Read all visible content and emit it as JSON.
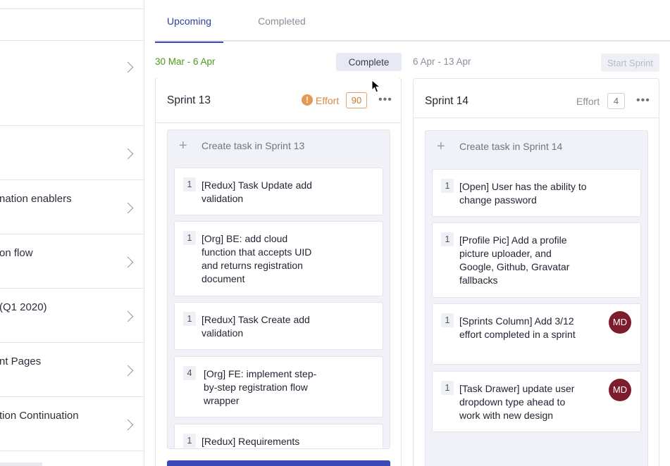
{
  "left_list": {
    "items": [
      {
        "label": ""
      },
      {
        "label": ""
      },
      {
        "label": ""
      },
      {
        "label": "nation enablers"
      },
      {
        "label": "on flow"
      },
      {
        "label": "(Q1 2020)"
      },
      {
        "label": "nt Pages"
      },
      {
        "label": "tion Continuation"
      }
    ]
  },
  "tabs": [
    {
      "label": "Upcoming",
      "active": true
    },
    {
      "label": "Completed",
      "active": false
    }
  ],
  "sprints": [
    {
      "date_range": "30 Mar - 6 Apr",
      "action_label": "Complete",
      "name": "Sprint 13",
      "effort_label": "Effort",
      "effort_value": "90",
      "effort_state": "warning",
      "accent_color": "#3b9a1a",
      "create_label": "Create task in Sprint 13",
      "tasks": [
        {
          "points": "1",
          "title": "[Redux] Task Update add validation",
          "assignee": ""
        },
        {
          "points": "1",
          "title": "[Org] BE: add cloud function that accepts UID and returns registration document",
          "assignee": ""
        },
        {
          "points": "1",
          "title": "[Redux] Task Create add validation",
          "assignee": ""
        },
        {
          "points": "4",
          "title": "[Org] FE: implement step-by-step registration flow wrapper",
          "assignee": ""
        },
        {
          "points": "1",
          "title": "[Redux] Requirements",
          "assignee": ""
        }
      ]
    },
    {
      "date_range": "6 Apr - 13 Apr",
      "action_label": "Start Sprint",
      "name": "Sprint 14",
      "effort_label": "Effort",
      "effort_value": "4",
      "effort_state": "normal",
      "create_label": "Create task in Sprint 14",
      "tasks": [
        {
          "points": "1",
          "title": "[Open] User has the ability to change password",
          "assignee": ""
        },
        {
          "points": "1",
          "title": "[Profile Pic] Add a profile picture uploader, and Google, Github, Gravatar fallbacks",
          "assignee": ""
        },
        {
          "points": "1",
          "title": "[Sprints Column] Add 3/12 effort completed in a sprint",
          "assignee": "MD"
        },
        {
          "points": "1",
          "title": "[Task Drawer] update user dropdown type ahead to work with new design",
          "assignee": "MD"
        }
      ]
    }
  ],
  "icons": {
    "warning": "exclamation-circle-icon",
    "more": "more-horizontal-icon",
    "plus": "plus-icon",
    "chevron": "chevron-right-icon"
  },
  "colors": {
    "accent_blue": "#3a48b8",
    "sprint_active_green": "#3b9a1a",
    "effort_warning": "#e39a55",
    "avatar": "#7e1b2c"
  }
}
